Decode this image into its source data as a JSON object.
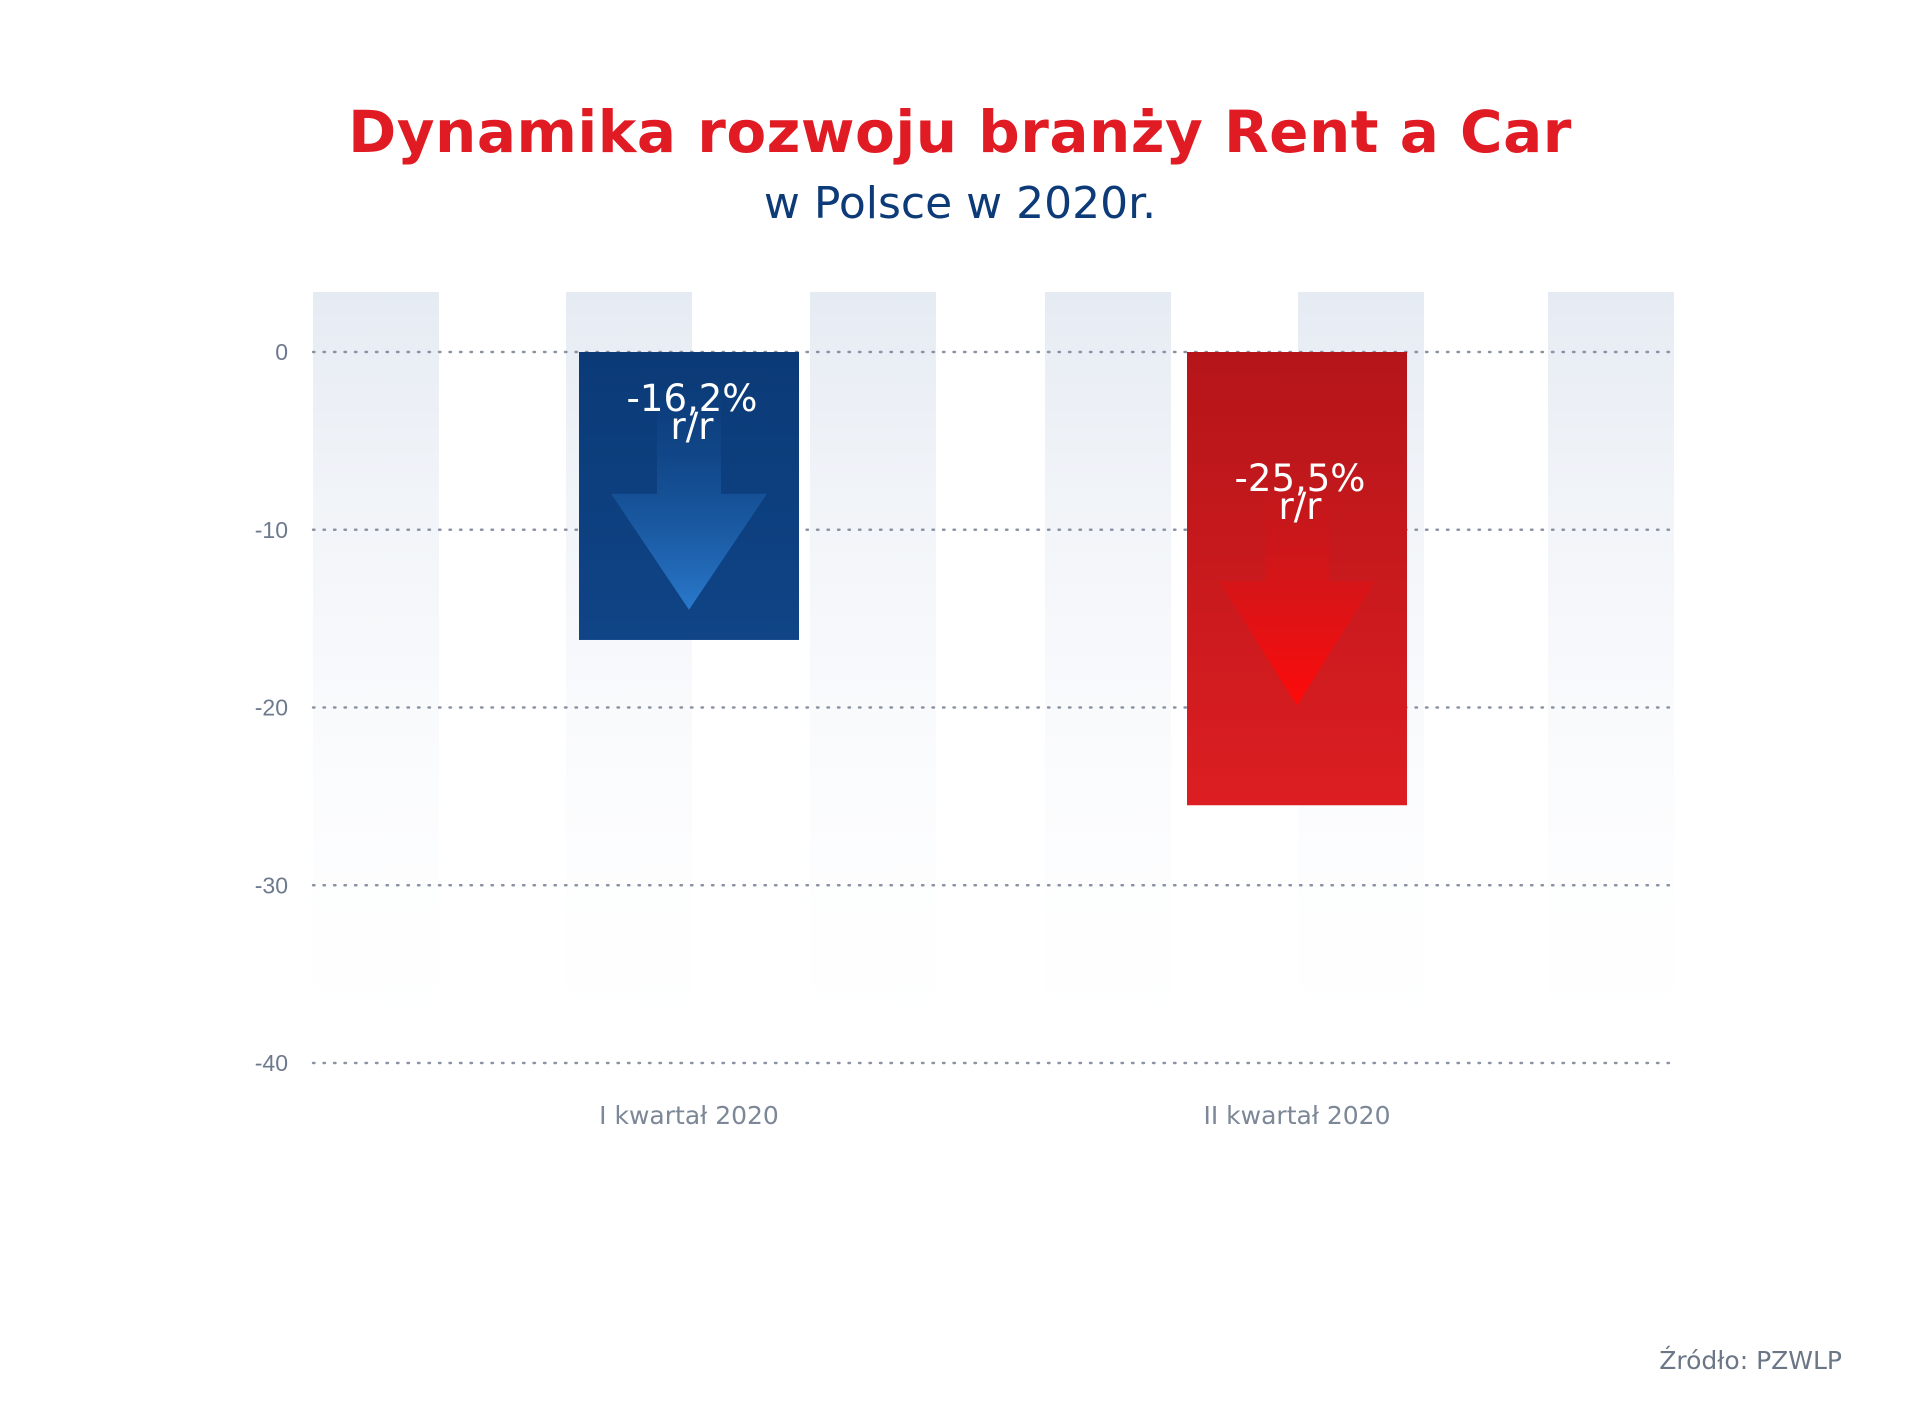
{
  "title": "Dynamika rozwoju branży Rent a Car",
  "subtitle": "w Polsce w 2020r.",
  "source": "Źródło: PZWLP",
  "colors": {
    "title": "#e01b24",
    "subtitle": "#0d3b78",
    "blue_bar": "#0d3f7f",
    "red_bar": "#d11c1f",
    "band": "#e7ecf4",
    "grid": "#8a93a3"
  },
  "chart_data": {
    "type": "bar",
    "title": "Dynamika rozwoju branży Rent a Car",
    "subtitle": "w Polsce w 2020r.",
    "categories": [
      "I kwartał 2020",
      "II kwartał 2020"
    ],
    "values": [
      -16.2,
      -25.5
    ],
    "data_labels": [
      {
        "value": "-16,2%",
        "unit": "r/r"
      },
      {
        "value": "-25,5%",
        "unit": "r/r"
      }
    ],
    "bar_colors": [
      "#0d3f7f",
      "#d11c1f"
    ],
    "bar_icon": "down-arrow-icon",
    "ylim": [
      -40,
      0
    ],
    "yticks": [
      0,
      -10,
      -20,
      -30,
      -40
    ],
    "ytick_labels": [
      "0",
      "-10",
      "-20",
      "-30",
      "-40"
    ],
    "grid": true,
    "grid_style": "dotted",
    "xlabel": "",
    "ylabel": ""
  }
}
